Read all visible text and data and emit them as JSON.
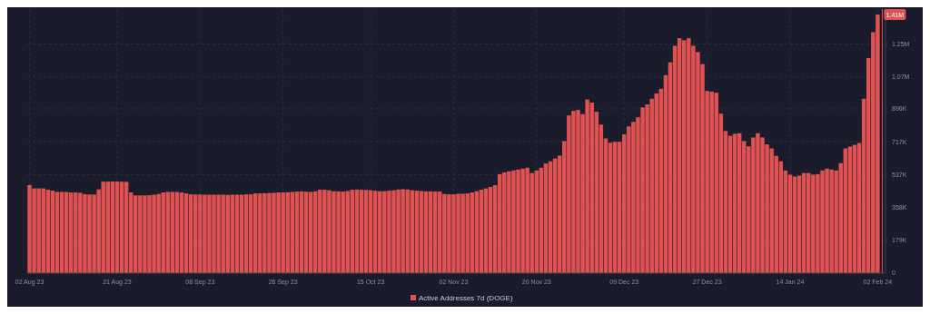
{
  "chart_data": {
    "type": "bar",
    "legend": "bottom",
    "grid": true,
    "xlim": [
      "2023-08-01T12:00",
      "2024-02-03T12:00"
    ],
    "xticks": [
      {
        "value": "2023-08-02",
        "label": "02 Aug 23"
      },
      {
        "value": "2023-08-21",
        "label": "21 Aug 23"
      },
      {
        "value": "2023-09-08",
        "label": "08 Sep 23"
      },
      {
        "value": "2023-09-26",
        "label": "26 Sep 23"
      },
      {
        "value": "2023-10-15",
        "label": "15 Oct 23"
      },
      {
        "value": "2023-11-02",
        "label": "02 Nov 23"
      },
      {
        "value": "2023-11-20",
        "label": "20 Nov 23"
      },
      {
        "value": "2023-12-09",
        "label": "09 Dec 23"
      },
      {
        "value": "2023-12-27",
        "label": "27 Dec 23"
      },
      {
        "value": "2024-01-14",
        "label": "14 Jan 24"
      },
      {
        "value": "2024-02-02",
        "label": "02 Feb 24"
      }
    ],
    "ylim": [
      0,
      1440000
    ],
    "yticks": [
      0,
      {
        "value": 179000,
        "label": "179K"
      },
      {
        "value": 358000,
        "label": "358K"
      },
      {
        "value": 537000,
        "label": "537K"
      },
      {
        "value": 717000,
        "label": "717K"
      },
      {
        "value": 896000,
        "label": "896K"
      },
      {
        "value": 1070000,
        "label": "1.07M"
      },
      {
        "value": 1250000,
        "label": "1.25M"
      }
    ],
    "ref_lines": [
      {
        "axis": "x",
        "value": "2024-02-03",
        "color": "#e05252"
      }
    ],
    "annotations": [
      {
        "text": "1.41M",
        "x": "2024-02-02",
        "y": 1410000
      }
    ],
    "x": [
      "2023-08-02",
      "2023-08-03",
      "2023-08-04",
      "2023-08-05",
      "2023-08-06",
      "2023-08-07",
      "2023-08-08",
      "2023-08-09",
      "2023-08-10",
      "2023-08-11",
      "2023-08-12",
      "2023-08-13",
      "2023-08-14",
      "2023-08-15",
      "2023-08-16",
      "2023-08-17",
      "2023-08-18",
      "2023-08-19",
      "2023-08-20",
      "2023-08-21",
      "2023-08-22",
      "2023-08-23",
      "2023-08-24",
      "2023-08-25",
      "2023-08-26",
      "2023-08-27",
      "2023-08-28",
      "2023-08-29",
      "2023-08-30",
      "2023-08-31",
      "2023-09-01",
      "2023-09-02",
      "2023-09-03",
      "2023-09-04",
      "2023-09-05",
      "2023-09-06",
      "2023-09-07",
      "2023-09-08",
      "2023-09-09",
      "2023-09-10",
      "2023-09-11",
      "2023-09-12",
      "2023-09-13",
      "2023-09-14",
      "2023-09-15",
      "2023-09-16",
      "2023-09-17",
      "2023-09-18",
      "2023-09-19",
      "2023-09-20",
      "2023-09-21",
      "2023-09-22",
      "2023-09-23",
      "2023-09-24",
      "2023-09-25",
      "2023-09-26",
      "2023-09-27",
      "2023-09-28",
      "2023-09-29",
      "2023-09-30",
      "2023-10-01",
      "2023-10-02",
      "2023-10-03",
      "2023-10-04",
      "2023-10-05",
      "2023-10-06",
      "2023-10-07",
      "2023-10-08",
      "2023-10-09",
      "2023-10-10",
      "2023-10-11",
      "2023-10-12",
      "2023-10-13",
      "2023-10-14",
      "2023-10-15",
      "2023-10-16",
      "2023-10-17",
      "2023-10-18",
      "2023-10-19",
      "2023-10-20",
      "2023-10-21",
      "2023-10-22",
      "2023-10-23",
      "2023-10-24",
      "2023-10-25",
      "2023-10-26",
      "2023-10-27",
      "2023-10-28",
      "2023-10-29",
      "2023-10-30",
      "2023-10-31",
      "2023-11-01",
      "2023-11-02",
      "2023-11-03",
      "2023-11-04",
      "2023-11-05",
      "2023-11-06",
      "2023-11-07",
      "2023-11-08",
      "2023-11-09",
      "2023-11-10",
      "2023-11-11",
      "2023-11-12",
      "2023-11-13",
      "2023-11-14",
      "2023-11-15",
      "2023-11-16",
      "2023-11-17",
      "2023-11-18",
      "2023-11-19",
      "2023-11-20",
      "2023-11-21",
      "2023-11-22",
      "2023-11-23",
      "2023-11-24",
      "2023-11-25",
      "2023-11-26",
      "2023-11-27",
      "2023-11-28",
      "2023-11-29",
      "2023-11-30",
      "2023-12-01",
      "2023-12-02",
      "2023-12-03",
      "2023-12-04",
      "2023-12-05",
      "2023-12-06",
      "2023-12-07",
      "2023-12-08",
      "2023-12-09",
      "2023-12-10",
      "2023-12-11",
      "2023-12-12",
      "2023-12-13",
      "2023-12-14",
      "2023-12-15",
      "2023-12-16",
      "2023-12-17",
      "2023-12-18",
      "2023-12-19",
      "2023-12-20",
      "2023-12-21",
      "2023-12-22",
      "2023-12-23",
      "2023-12-24",
      "2023-12-25",
      "2023-12-26",
      "2023-12-27",
      "2023-12-28",
      "2023-12-29",
      "2023-12-30",
      "2023-12-31",
      "2024-01-01",
      "2024-01-02",
      "2024-01-03",
      "2024-01-04",
      "2024-01-05",
      "2024-01-06",
      "2024-01-07",
      "2024-01-08",
      "2024-01-09",
      "2024-01-10",
      "2024-01-11",
      "2024-01-12",
      "2024-01-13",
      "2024-01-14",
      "2024-01-15",
      "2024-01-16",
      "2024-01-17",
      "2024-01-18",
      "2024-01-19",
      "2024-01-20",
      "2024-01-21",
      "2024-01-22",
      "2024-01-23",
      "2024-01-24",
      "2024-01-25",
      "2024-01-26",
      "2024-01-27",
      "2024-01-28",
      "2024-01-29",
      "2024-01-30",
      "2024-01-31",
      "2024-02-01",
      "2024-02-02"
    ],
    "series": [
      {
        "name": "Active Addresses 7d (DOGE)",
        "color": "#e05252",
        "values": [
          480000,
          462000,
          462000,
          462000,
          455000,
          450000,
          443000,
          443000,
          443000,
          440000,
          440000,
          438000,
          430000,
          429000,
          429000,
          457000,
          499000,
          499000,
          500000,
          500000,
          499000,
          498000,
          440000,
          424000,
          424000,
          424000,
          425000,
          428000,
          432000,
          440000,
          443000,
          443000,
          443000,
          440000,
          435000,
          430000,
          429000,
          429000,
          428000,
          428000,
          428000,
          428000,
          428000,
          427000,
          428000,
          428000,
          428000,
          430000,
          430000,
          435000,
          435000,
          436000,
          437000,
          438000,
          440000,
          440000,
          441000,
          443000,
          445000,
          446000,
          444000,
          443000,
          446000,
          455000,
          455000,
          452000,
          447000,
          446000,
          445000,
          448000,
          455000,
          456000,
          455000,
          454000,
          452000,
          449000,
          447000,
          447000,
          450000,
          452000,
          456000,
          458000,
          456000,
          452000,
          450000,
          448000,
          446000,
          446000,
          445000,
          445000,
          432000,
          430000,
          430000,
          433000,
          433000,
          435000,
          440000,
          447000,
          455000,
          462000,
          470000,
          480000,
          540000,
          550000,
          555000,
          560000,
          565000,
          570000,
          575000,
          546000,
          560000,
          575000,
          598000,
          610000,
          625000,
          641000,
          720000,
          860000,
          885000,
          890000,
          867000,
          947000,
          930000,
          880000,
          810000,
          735000,
          711000,
          716000,
          716000,
          758000,
          800000,
          825000,
          850000,
          904000,
          920000,
          951000,
          980000,
          1005000,
          1080000,
          1150000,
          1240000,
          1281000,
          1270000,
          1281000,
          1240000,
          1206000,
          1140000,
          994000,
          990000,
          984000,
          870000,
          775000,
          749000,
          760000,
          763000,
          720000,
          692000,
          740000,
          763000,
          740000,
          702000,
          680000,
          640000,
          610000,
          560000,
          537000,
          527000,
          532000,
          546000,
          546000,
          537000,
          540000,
          560000,
          570000,
          565000,
          560000,
          600000,
          680000,
          690000,
          700000,
          710000,
          951000,
          1173000,
          1314000,
          1410000
        ]
      }
    ]
  }
}
